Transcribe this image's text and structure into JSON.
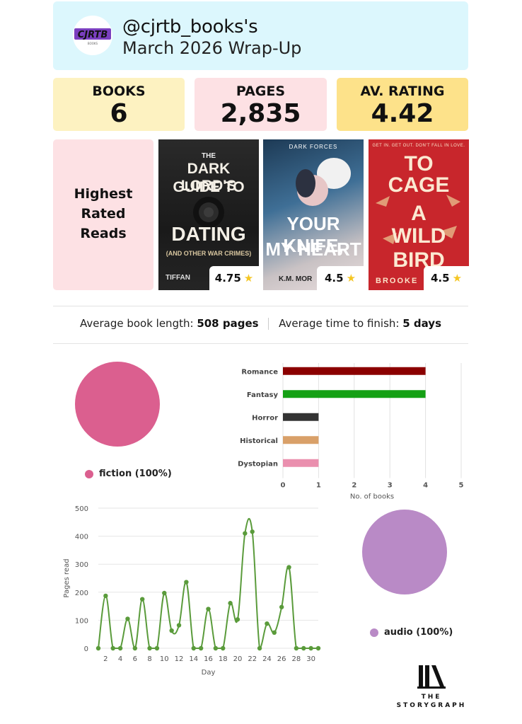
{
  "header": {
    "avatar_text": "CJRTB",
    "avatar_subtext": "BOOKS",
    "handle": "@cjrtb_books's",
    "subtitle": "March 2026 Wrap-Up",
    "background": "#dcf7fd"
  },
  "stats": {
    "books": {
      "label": "BOOKS",
      "value": "6",
      "color": "#fdf2c1"
    },
    "pages": {
      "label": "PAGES",
      "value": "2,835",
      "color": "#fde1e4"
    },
    "rating": {
      "label": "AV. RATING",
      "value": "4.42",
      "color": "#fde28a"
    }
  },
  "highest_rated": {
    "lines": [
      "Highest",
      "Rated",
      "Reads"
    ],
    "books": [
      {
        "title_lines": [
          "THE",
          "DARK LORD'S",
          "GUIDE TO",
          "DATING"
        ],
        "subtitle": "(AND OTHER WAR CRIMES)",
        "author_partial": "TIFFAN",
        "rating": "4.75",
        "icon": "star-icon"
      },
      {
        "series": "DARK FORCES",
        "title_lines": [
          "YOUR KNIFE,",
          "MY HEART"
        ],
        "author_partial": "K.M. MOR",
        "rating": "4.5",
        "icon": "star-icon"
      },
      {
        "tagline": "GET IN. GET OUT. DON'T FALL IN LOVE.",
        "title_lines": [
          "TO",
          "CAGE",
          "A",
          "WILD",
          "BIRD"
        ],
        "author_partial": "BROOKE",
        "rating": "4.5",
        "icon": "star-icon"
      }
    ]
  },
  "summary": {
    "length_label": "Average book length:",
    "length_value": "508 pages",
    "time_label": "Average time to finish:",
    "time_value": "5 days"
  },
  "fiction_legend": "fiction (100%)",
  "audio_legend": "audio (100%)",
  "colors": {
    "fiction": "#db5f8f",
    "audio": "#b98ac6",
    "line": "#5a9b3b"
  },
  "logo": {
    "line1": "THE",
    "line2": "STORYGRAPH"
  },
  "chart_data": [
    {
      "type": "pie",
      "labels": [
        "fiction"
      ],
      "values": [
        100
      ],
      "colors": [
        "#db5f8f"
      ]
    },
    {
      "type": "bar",
      "orientation": "horizontal",
      "categories": [
        "Romance",
        "Fantasy",
        "Horror",
        "Historical",
        "Dystopian"
      ],
      "values": [
        4,
        4,
        1,
        1,
        1
      ],
      "colors": [
        "#8b0000",
        "#14a014",
        "#333333",
        "#d9a069",
        "#ea8fae"
      ],
      "xlabel": "No. of books",
      "xlim": [
        0,
        5
      ],
      "xticks": [
        "0",
        "1",
        "2",
        "3",
        "4",
        "5"
      ],
      "grid": true
    },
    {
      "type": "line",
      "x": [
        1,
        2,
        3,
        4,
        5,
        6,
        7,
        8,
        9,
        10,
        11,
        12,
        13,
        14,
        15,
        16,
        17,
        18,
        19,
        20,
        21,
        22,
        23,
        24,
        25,
        26,
        27,
        28,
        29,
        30,
        31
      ],
      "values": [
        0,
        187,
        0,
        0,
        105,
        0,
        175,
        0,
        0,
        197,
        63,
        82,
        236,
        0,
        0,
        140,
        0,
        0,
        161,
        103,
        410,
        416,
        0,
        88,
        56,
        147,
        289,
        0,
        0,
        0,
        0
      ],
      "xlabel": "Day",
      "ylabel": "Pages read",
      "ylim": [
        0,
        500
      ],
      "yticks": [
        "0",
        "100",
        "200",
        "300",
        "400",
        "500"
      ],
      "xticks": [
        "2",
        "4",
        "6",
        "8",
        "10",
        "12",
        "14",
        "16",
        "18",
        "20",
        "22",
        "24",
        "26",
        "28",
        "30"
      ],
      "grid": true
    },
    {
      "type": "pie",
      "labels": [
        "audio"
      ],
      "values": [
        100
      ],
      "colors": [
        "#b98ac6"
      ]
    }
  ]
}
